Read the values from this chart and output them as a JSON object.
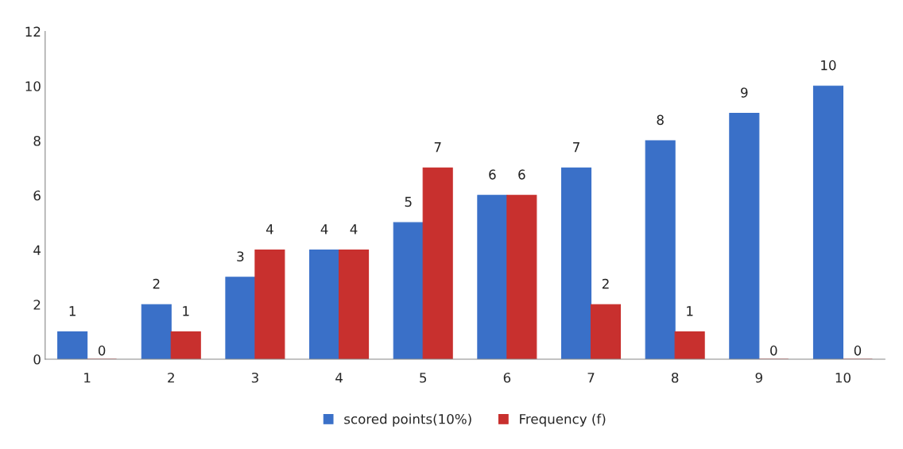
{
  "chart_data": {
    "type": "bar",
    "categories": [
      "1",
      "2",
      "3",
      "4",
      "5",
      "6",
      "7",
      "8",
      "9",
      "10"
    ],
    "series": [
      {
        "name": "scored points(10%)",
        "color": "#3a70c8",
        "values": [
          1,
          2,
          3,
          4,
          5,
          6,
          7,
          8,
          9,
          10
        ]
      },
      {
        "name": "Frequency (f)",
        "color": "#c8302e",
        "values": [
          0,
          1,
          4,
          4,
          7,
          6,
          2,
          1,
          0,
          0
        ]
      }
    ],
    "ylim": [
      0,
      12
    ],
    "yticks": [
      0,
      2,
      4,
      6,
      8,
      10,
      12
    ],
    "grid": false,
    "legend": "bottom",
    "data_labels": true
  }
}
